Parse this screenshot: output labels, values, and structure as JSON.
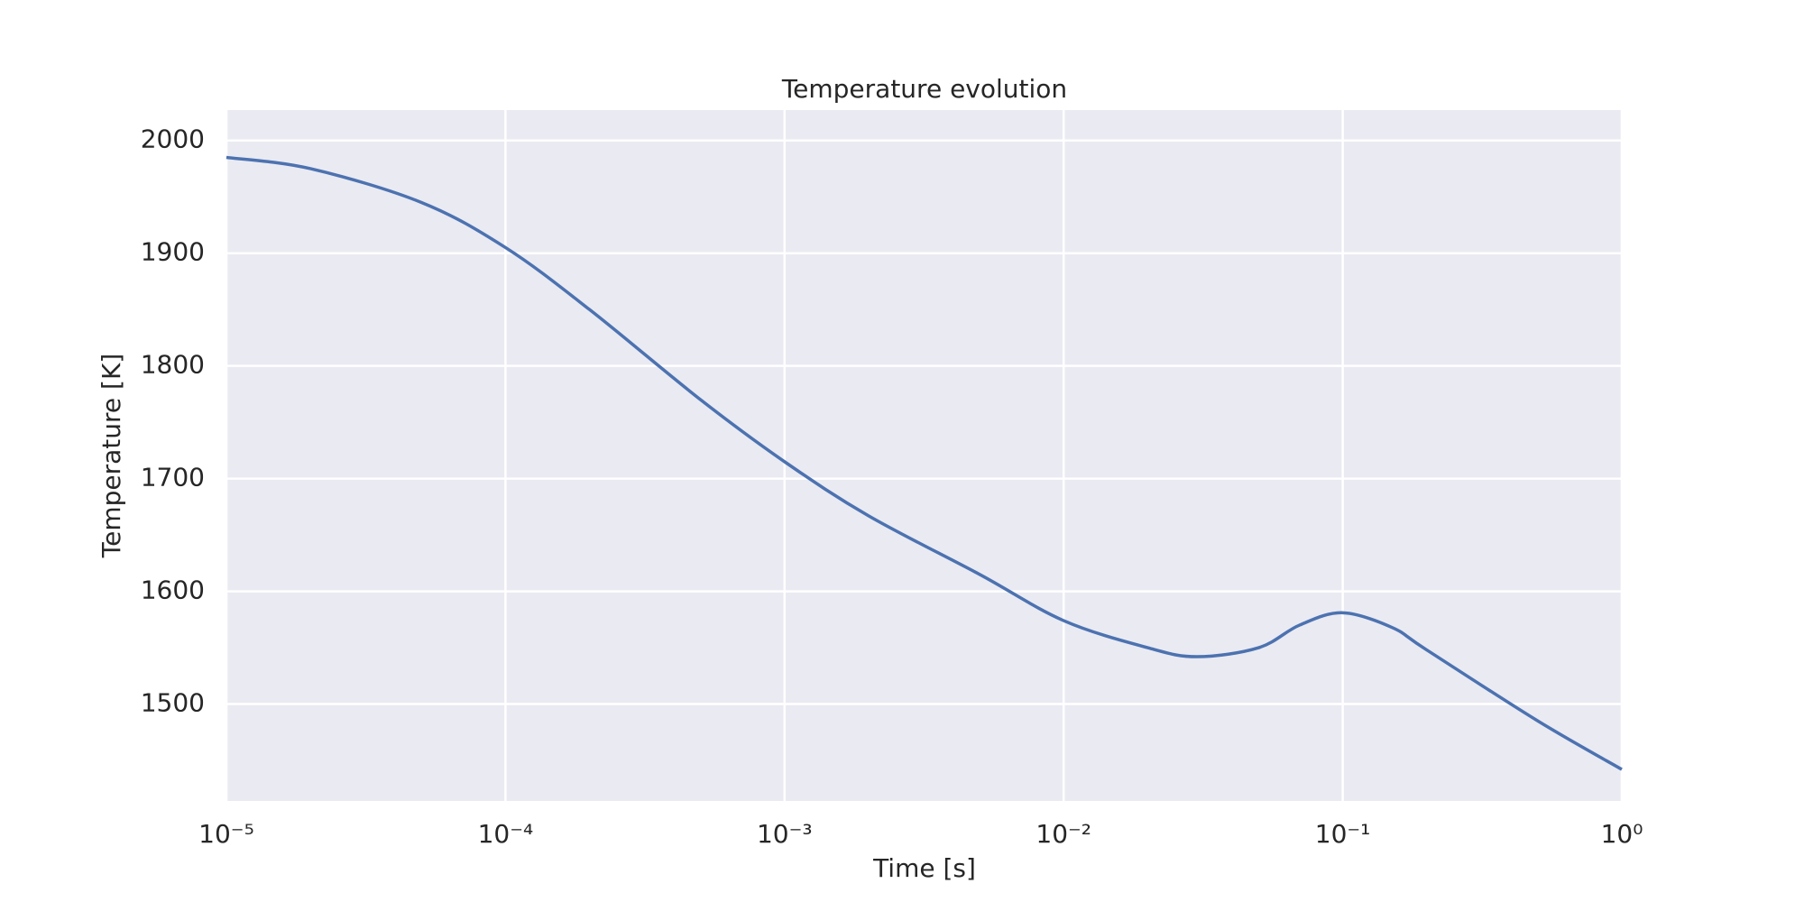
{
  "chart_data": {
    "type": "line",
    "title": "Temperature evolution",
    "x_label": "Time [s]",
    "y_label": "Temperature [K]",
    "x_scale": "log",
    "grid": true,
    "xlim": [
      1e-05,
      1
    ],
    "ylim": [
      1414,
      2027
    ],
    "xticks": [
      {
        "value": 1e-05,
        "label": "10⁻⁵"
      },
      {
        "value": 0.0001,
        "label": "10⁻⁴"
      },
      {
        "value": 0.001,
        "label": "10⁻³"
      },
      {
        "value": 0.01,
        "label": "10⁻²"
      },
      {
        "value": 0.1,
        "label": "10⁻¹"
      },
      {
        "value": 1,
        "label": "10⁰"
      }
    ],
    "yticks": [
      1500,
      1600,
      1700,
      1800,
      1900,
      2000
    ],
    "x": [
      1e-05,
      2e-05,
      5e-05,
      0.0001,
      0.0002,
      0.0005,
      0.001,
      0.002,
      0.005,
      0.01,
      0.02,
      0.03,
      0.05,
      0.07,
      0.1,
      0.15,
      0.2,
      0.5,
      1
    ],
    "series": [
      {
        "color": "#4c72b0",
        "values": [
          1985,
          1975,
          1945,
          1905,
          1850,
          1770,
          1715,
          1667,
          1615,
          1574,
          1550,
          1542,
          1550,
          1570,
          1581,
          1568,
          1548,
          1485,
          1442
        ]
      }
    ]
  }
}
